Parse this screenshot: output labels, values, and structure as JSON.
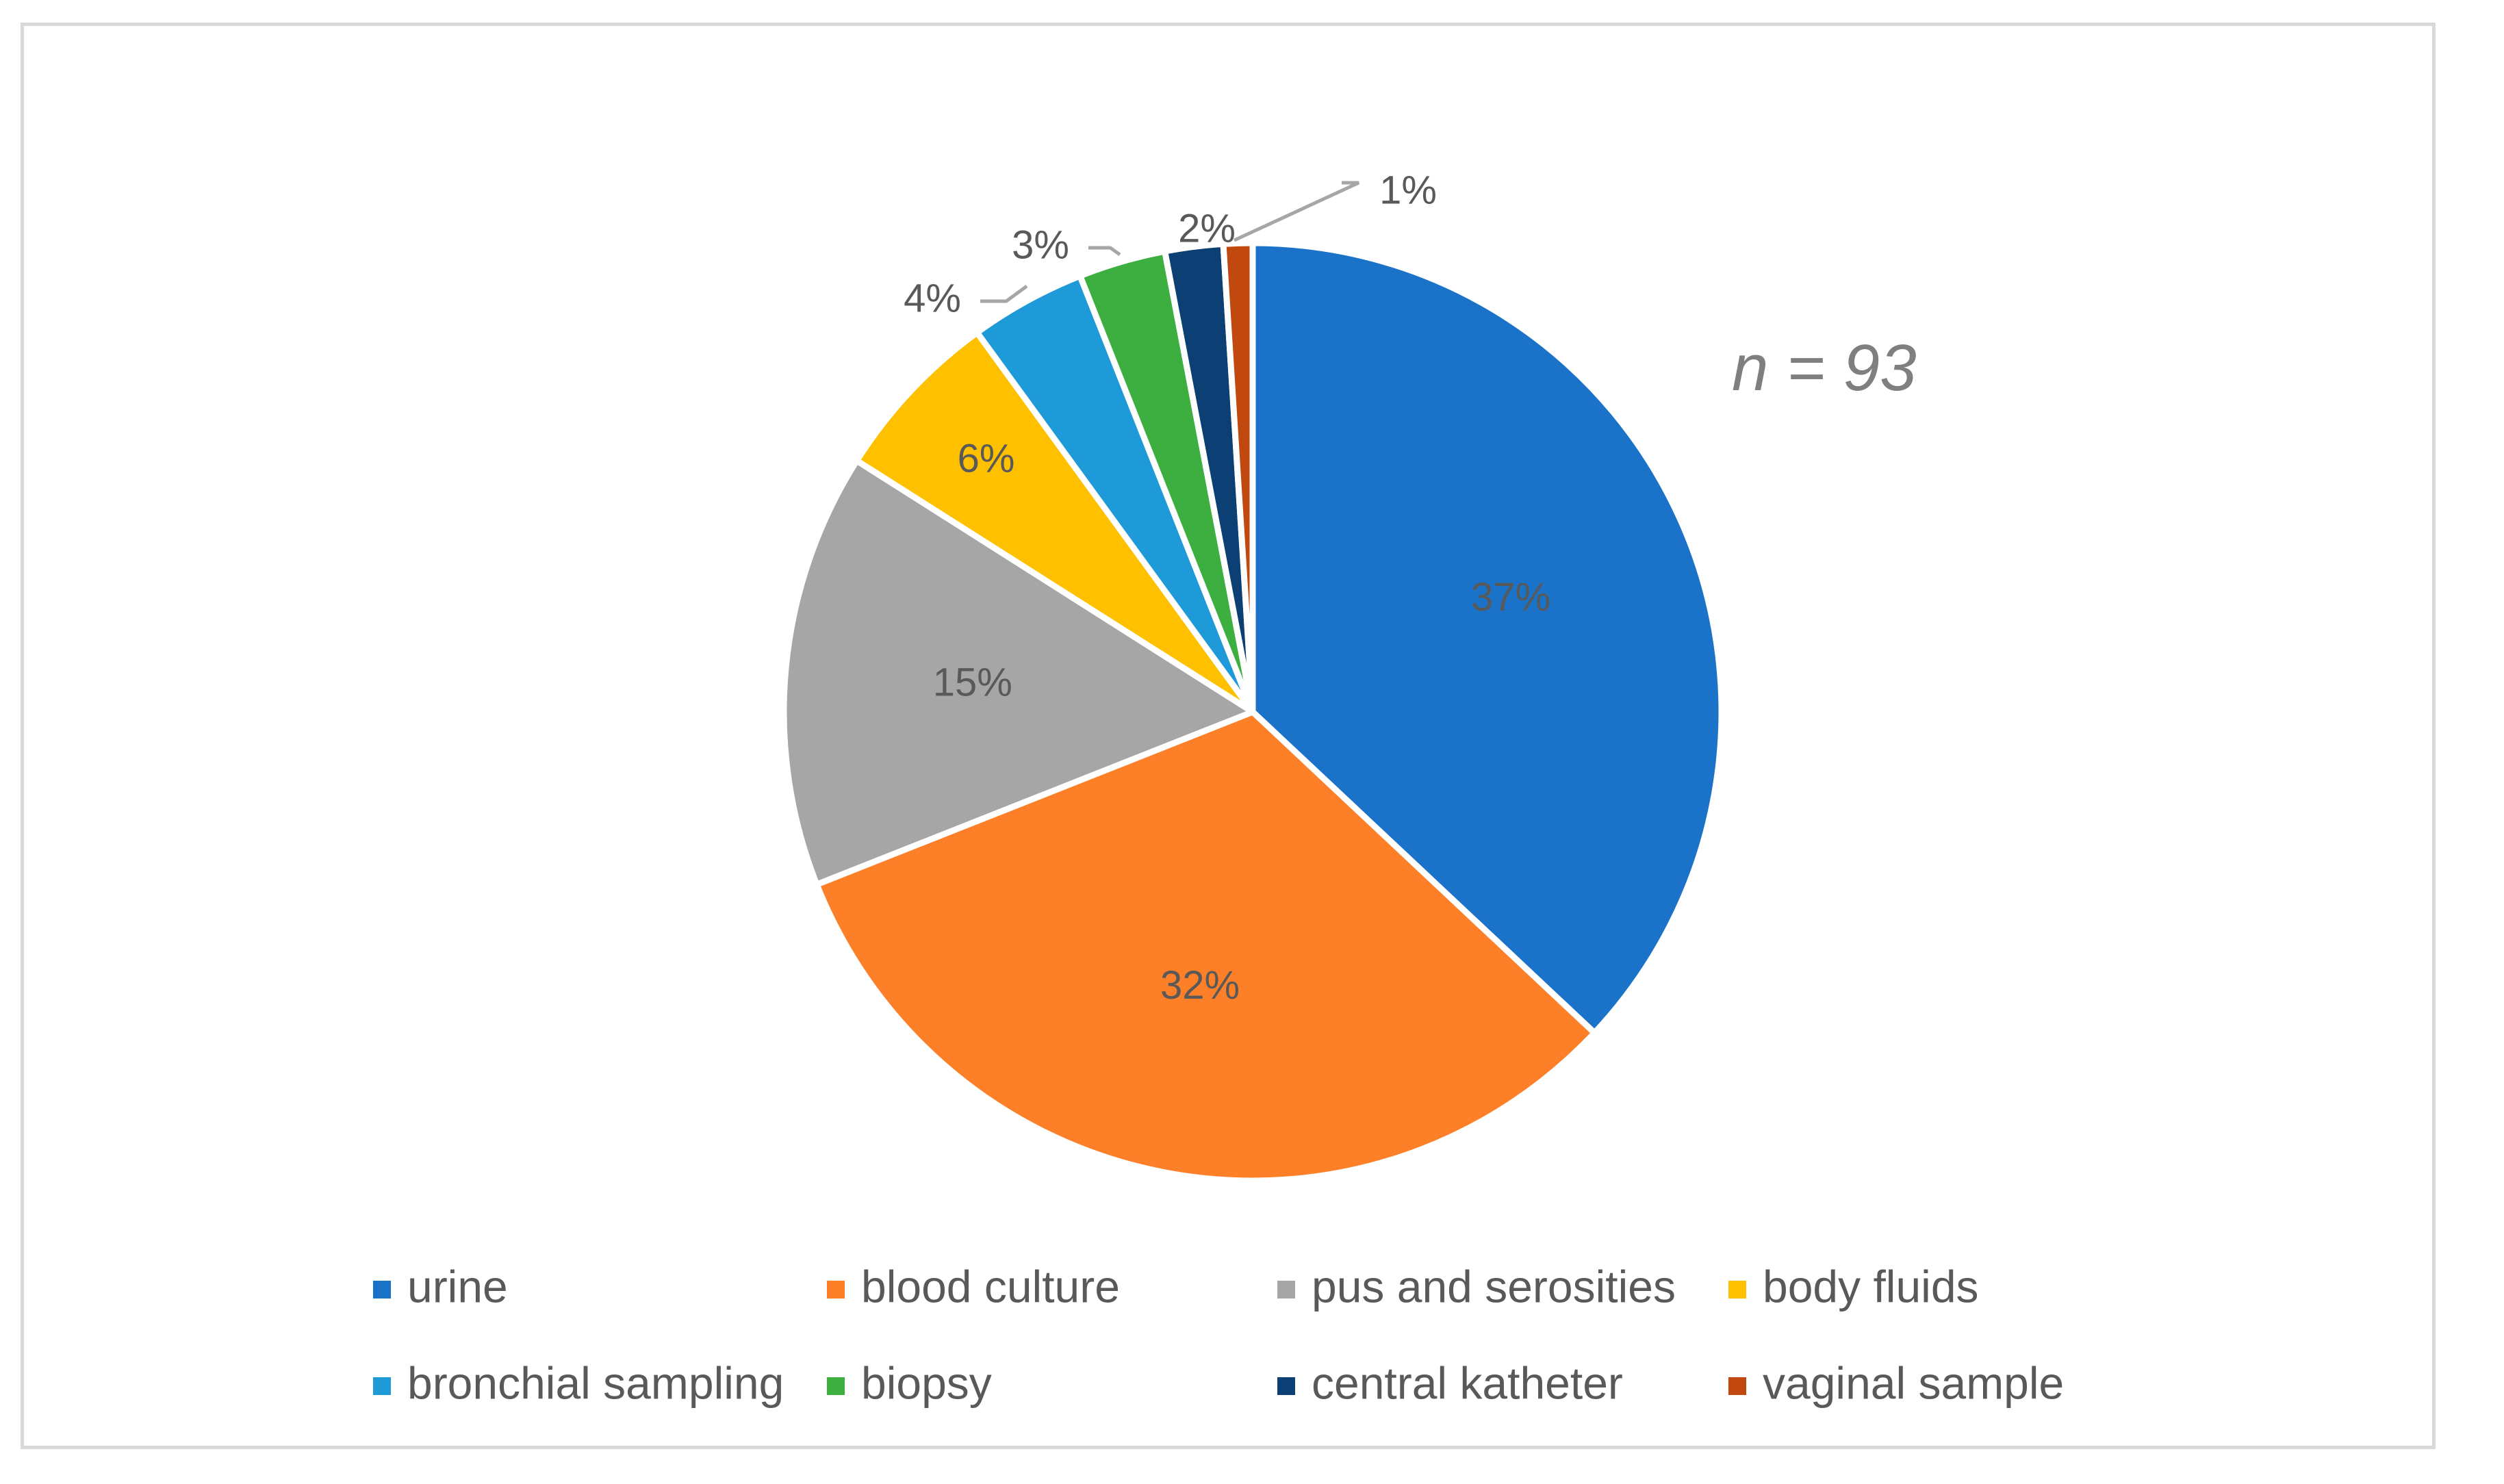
{
  "chart_data": {
    "type": "pie",
    "annotation": "n = 93",
    "slices": [
      {
        "name": "urine",
        "value": 37,
        "label": "37%",
        "color": "#1a73c8"
      },
      {
        "name": "blood culture",
        "value": 32,
        "label": "32%",
        "color": "#fd7f27"
      },
      {
        "name": "pus and serosities",
        "value": 15,
        "label": "15%",
        "color": "#a6a6a6"
      },
      {
        "name": "body fluids",
        "value": 6,
        "label": "6%",
        "color": "#ffc000"
      },
      {
        "name": "bronchial sampling",
        "value": 4,
        "label": "4%",
        "color": "#1f9ad8"
      },
      {
        "name": "biopsy",
        "value": 3,
        "label": "3%",
        "color": "#3daf40"
      },
      {
        "name": "central katheter",
        "value": 2,
        "label": "2%",
        "color": "#0c3f73"
      },
      {
        "name": "vaginal sample",
        "value": 1,
        "label": "1%",
        "color": "#c1480e"
      }
    ],
    "legend_position": "bottom"
  }
}
